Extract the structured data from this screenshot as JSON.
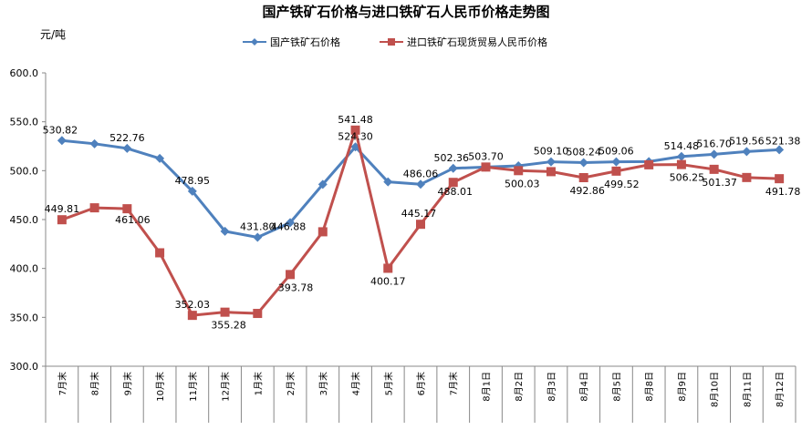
{
  "chart_data": {
    "type": "line",
    "title": "国产铁矿石价格与进口铁矿石人民币价格走势图",
    "ylabel": "元/吨",
    "ylim": [
      300,
      600
    ],
    "yticks": [
      "300.0",
      "350.0",
      "400.0",
      "450.0",
      "500.0",
      "550.0",
      "600.0"
    ],
    "grid": false,
    "legend_position": "top-center",
    "categories": [
      "7月末",
      "8月末",
      "9月末",
      "10月末",
      "11月末",
      "12月末",
      "1月末",
      "2月末",
      "3月末",
      "4月末",
      "5月末",
      "6月末",
      "7月末",
      "8月1日",
      "8月2日",
      "8月3日",
      "8月4日",
      "8月5日",
      "8月8日",
      "8月9日",
      "8月10日",
      "8月11日",
      "8月12日"
    ],
    "series": [
      {
        "name": "国产铁矿石价格",
        "color": "#4F81BD",
        "marker": "diamond",
        "values": [
          530.82,
          527.5,
          522.76,
          512.5,
          478.95,
          438.0,
          431.8,
          446.88,
          486.0,
          524.3,
          488.5,
          486.06,
          502.36,
          503.7,
          505.0,
          509.1,
          508.24,
          509.06,
          509.3,
          514.48,
          516.7,
          519.56,
          521.38
        ],
        "labels": [
          "530.82",
          "",
          "522.76",
          "",
          "478.95",
          "",
          "431.80",
          "446.88",
          "",
          "524.30",
          "",
          "486.06",
          "502.36",
          "503.70",
          "",
          "509.10",
          "508.24",
          "509.06",
          "",
          "514.48",
          "516.70",
          "519.56",
          "521.38"
        ]
      },
      {
        "name": "进口铁矿石现货贸易人民币价格",
        "color": "#C0504D",
        "marker": "square",
        "values": [
          449.81,
          462.0,
          461.06,
          416.0,
          352.03,
          355.28,
          354.0,
          393.78,
          437.5,
          541.48,
          400.17,
          445.17,
          488.01,
          503.7,
          500.03,
          499.0,
          492.86,
          499.52,
          506.0,
          506.25,
          501.37,
          493.0,
          491.78
        ],
        "labels": [
          "449.81",
          "",
          "461.06",
          "",
          "352.03",
          "355.28",
          "",
          "393.78",
          "",
          "541.48",
          "400.17",
          "445.17",
          "488.01",
          "",
          "500.03",
          "",
          "492.86",
          "499.52",
          "",
          "506.25",
          "501.37",
          "",
          "491.78"
        ]
      }
    ]
  }
}
